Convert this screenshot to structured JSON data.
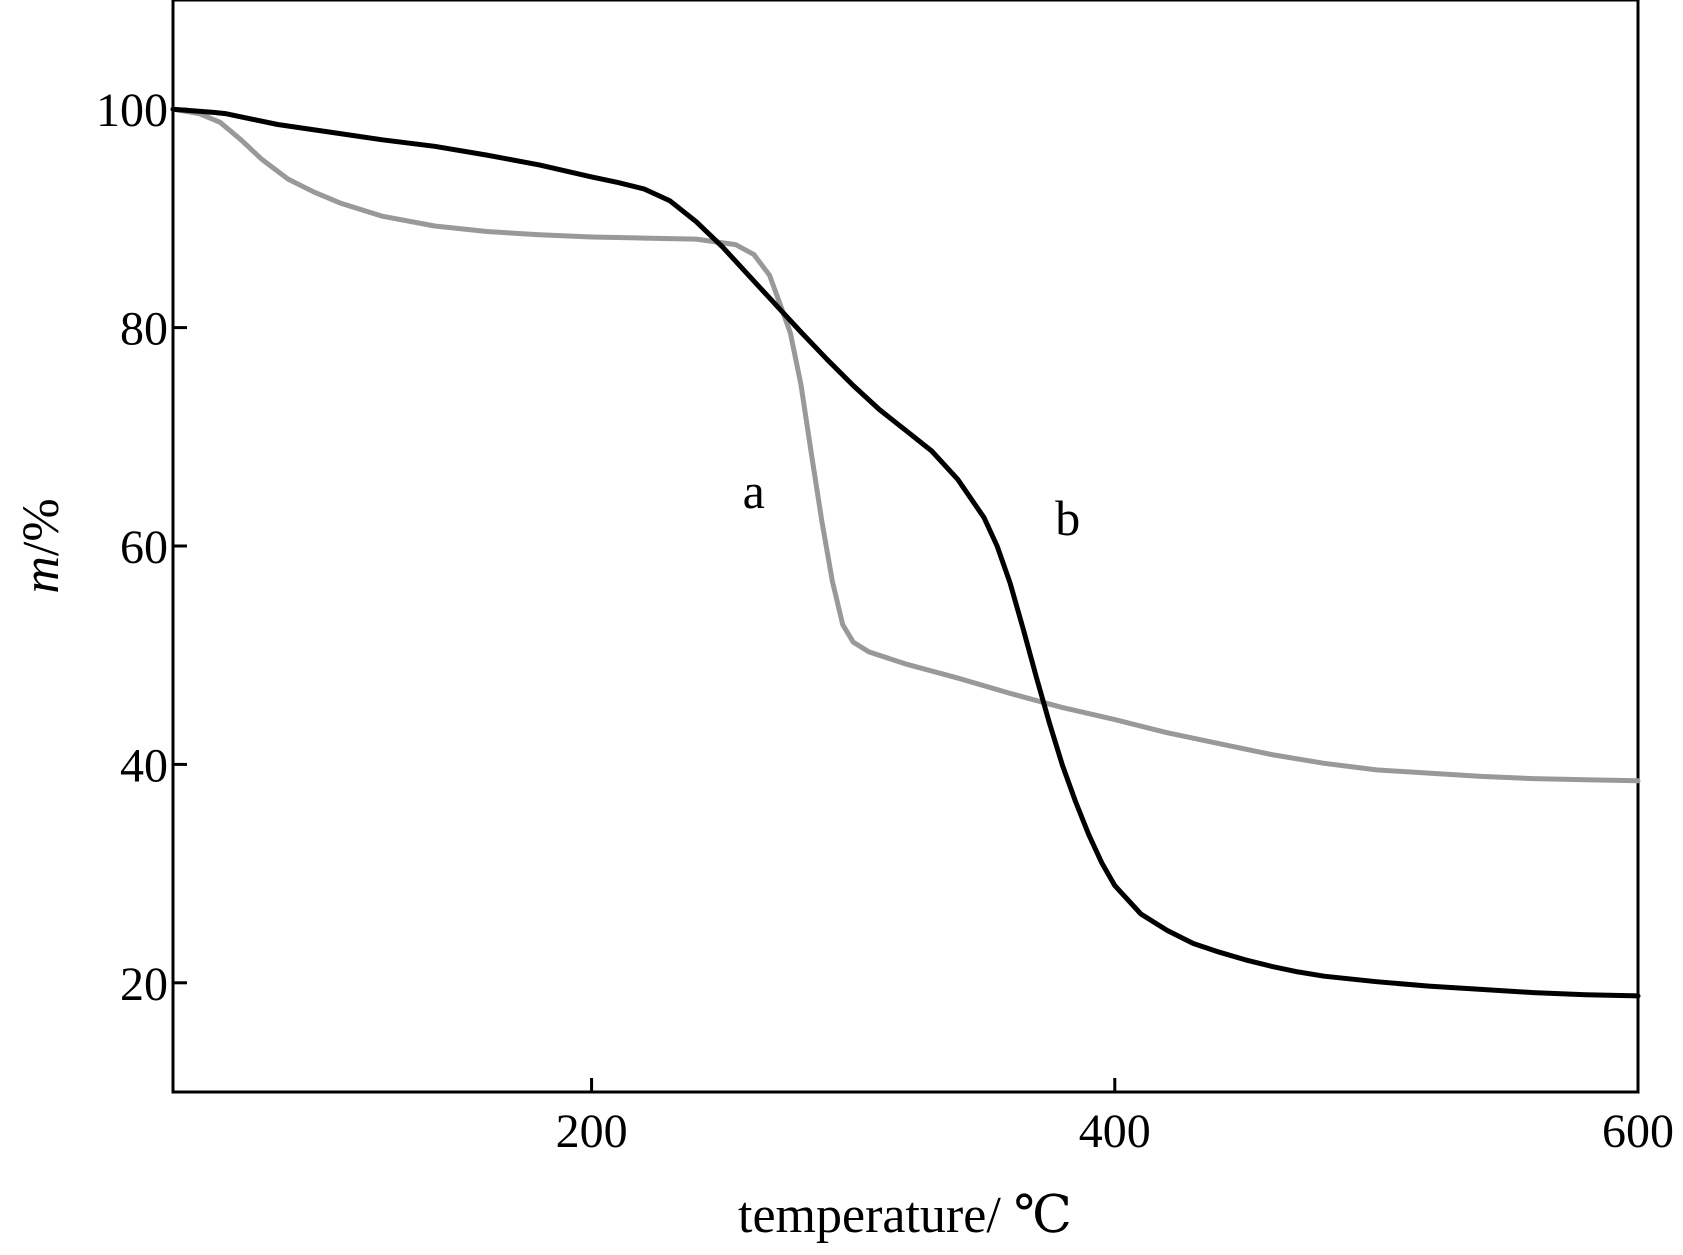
{
  "chart_data": {
    "type": "line",
    "xlabel": "temperature/ ℃",
    "ylabel_italic": "m",
    "ylabel_unit": "/%",
    "xlim": [
      40,
      600
    ],
    "ylim": [
      10,
      110
    ],
    "xticks": [
      200,
      400,
      600
    ],
    "yticks": [
      20,
      40,
      60,
      80,
      100
    ],
    "grid": false,
    "colors": {
      "a": "#999999",
      "b": "#000000",
      "axis": "#000000"
    },
    "series": [
      {
        "name": "a",
        "color": "#999999",
        "x": [
          40,
          50,
          58,
          66,
          74,
          84,
          94,
          104,
          120,
          140,
          160,
          180,
          200,
          220,
          240,
          255,
          262,
          268,
          272,
          276,
          280,
          284,
          288,
          292,
          296,
          300,
          306,
          320,
          340,
          360,
          380,
          400,
          420,
          440,
          460,
          480,
          500,
          520,
          540,
          560,
          580,
          600
        ],
        "y": [
          100,
          99.6,
          98.8,
          97.2,
          95.4,
          93.6,
          92.4,
          91.4,
          90.2,
          89.3,
          88.8,
          88.5,
          88.3,
          88.2,
          88.1,
          87.6,
          86.7,
          84.8,
          82.2,
          79.5,
          74.8,
          68.5,
          62.3,
          56.8,
          52.8,
          51.2,
          50.3,
          49.2,
          47.9,
          46.5,
          45.2,
          44.1,
          42.9,
          41.9,
          40.9,
          40.1,
          39.5,
          39.2,
          38.9,
          38.7,
          38.6,
          38.5
        ]
      },
      {
        "name": "b",
        "color": "#000000",
        "x": [
          40,
          56,
          60,
          80,
          100,
          120,
          140,
          160,
          180,
          200,
          210,
          220,
          230,
          240,
          250,
          260,
          270,
          280,
          290,
          300,
          310,
          320,
          330,
          340,
          350,
          355,
          360,
          365,
          370,
          375,
          380,
          385,
          390,
          395,
          400,
          410,
          420,
          430,
          440,
          450,
          460,
          470,
          480,
          500,
          520,
          540,
          560,
          580,
          600
        ],
        "y": [
          100,
          99.7,
          99.6,
          98.6,
          97.9,
          97.2,
          96.6,
          95.8,
          94.9,
          93.8,
          93.3,
          92.7,
          91.6,
          89.7,
          87.4,
          84.8,
          82.2,
          79.6,
          77.1,
          74.7,
          72.5,
          70.6,
          68.7,
          66.1,
          62.6,
          60.0,
          56.6,
          52.4,
          48.0,
          43.8,
          39.9,
          36.6,
          33.6,
          31.0,
          28.9,
          26.3,
          24.8,
          23.6,
          22.8,
          22.1,
          21.5,
          21.0,
          20.6,
          20.1,
          19.7,
          19.4,
          19.1,
          18.9,
          18.8
        ]
      }
    ],
    "annotations": [
      {
        "text": "a",
        "x": 262,
        "y": 63.5
      },
      {
        "text": "b",
        "x": 382,
        "y": 61
      }
    ]
  }
}
